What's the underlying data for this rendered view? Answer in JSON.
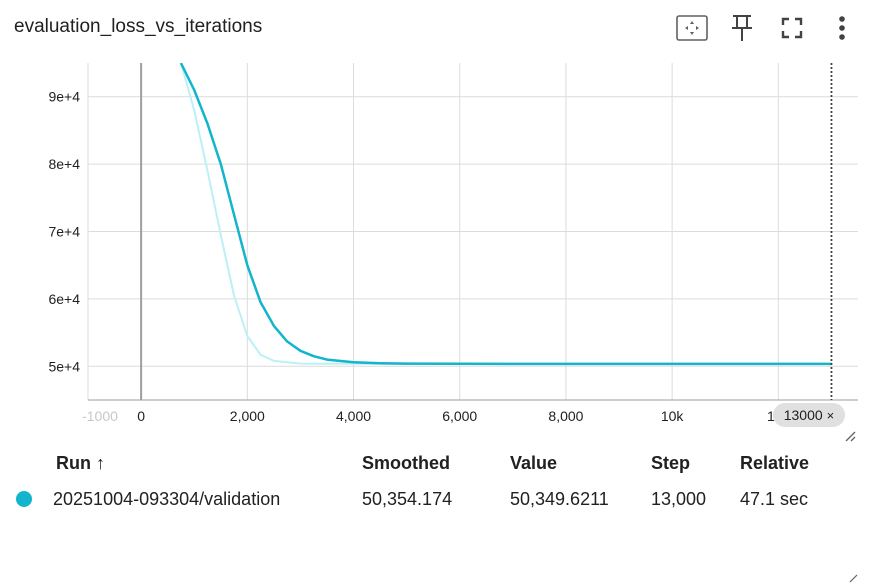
{
  "card": {
    "title": "evaluation_loss_vs_iterations",
    "toolbar": [
      {
        "name": "fit-domain-icon"
      },
      {
        "name": "pin-icon"
      },
      {
        "name": "fullscreen-icon"
      },
      {
        "name": "more-vert-icon"
      }
    ]
  },
  "chart_data": {
    "type": "line",
    "xlim": [
      -1000,
      13500
    ],
    "ylim": [
      45000,
      95000
    ],
    "x_ticks": [
      {
        "value": -1000,
        "label": "-1000",
        "faded": true
      },
      {
        "value": 0,
        "label": "0"
      },
      {
        "value": 2000,
        "label": "2,000"
      },
      {
        "value": 4000,
        "label": "4,000"
      },
      {
        "value": 6000,
        "label": "6,000"
      },
      {
        "value": 8000,
        "label": "8,000"
      },
      {
        "value": 10000,
        "label": "10k"
      },
      {
        "value": 12000,
        "label": "12k"
      }
    ],
    "y_ticks": [
      {
        "value": 50000,
        "label": "5e+4"
      },
      {
        "value": 60000,
        "label": "6e+4"
      },
      {
        "value": 70000,
        "label": "7e+4"
      },
      {
        "value": 80000,
        "label": "8e+4"
      },
      {
        "value": 90000,
        "label": "9e+4"
      }
    ],
    "grid": true,
    "cursor_step": 13000,
    "series": [
      {
        "role": "raw",
        "color": "#bdf0f5",
        "x": [
          750,
          1000,
          1250,
          1500,
          1750,
          2000,
          2250,
          2500,
          3000,
          3500,
          4000,
          5000,
          6000,
          8000,
          10000,
          13000
        ],
        "y": [
          95000,
          88000,
          79000,
          69500,
          60500,
          54500,
          51700,
          50800,
          50400,
          50380,
          50370,
          50360,
          50355,
          50350,
          50350,
          50349.6211
        ]
      },
      {
        "role": "smoothed",
        "color": "#12b5cb",
        "x": [
          750,
          1000,
          1250,
          1500,
          1750,
          2000,
          2250,
          2500,
          2750,
          3000,
          3250,
          3500,
          4000,
          4500,
          5000,
          6000,
          8000,
          10000,
          13000
        ],
        "y": [
          95000,
          91000,
          86000,
          80000,
          72500,
          65000,
          59500,
          56000,
          53700,
          52300,
          51500,
          51000,
          50600,
          50450,
          50400,
          50370,
          50360,
          50355,
          50354.174
        ]
      }
    ]
  },
  "step_chip": {
    "label": "13000",
    "close": "×"
  },
  "table": {
    "headers": {
      "run": "Run ↑",
      "smoothed": "Smoothed",
      "value": "Value",
      "step": "Step",
      "relative": "Relative"
    },
    "rows": [
      {
        "color": "#12b5cb",
        "run": "20251004-093304/validation",
        "smoothed": "50,354.174",
        "value": "50,349.6211",
        "step": "13,000",
        "relative": "47.1 sec"
      }
    ]
  }
}
